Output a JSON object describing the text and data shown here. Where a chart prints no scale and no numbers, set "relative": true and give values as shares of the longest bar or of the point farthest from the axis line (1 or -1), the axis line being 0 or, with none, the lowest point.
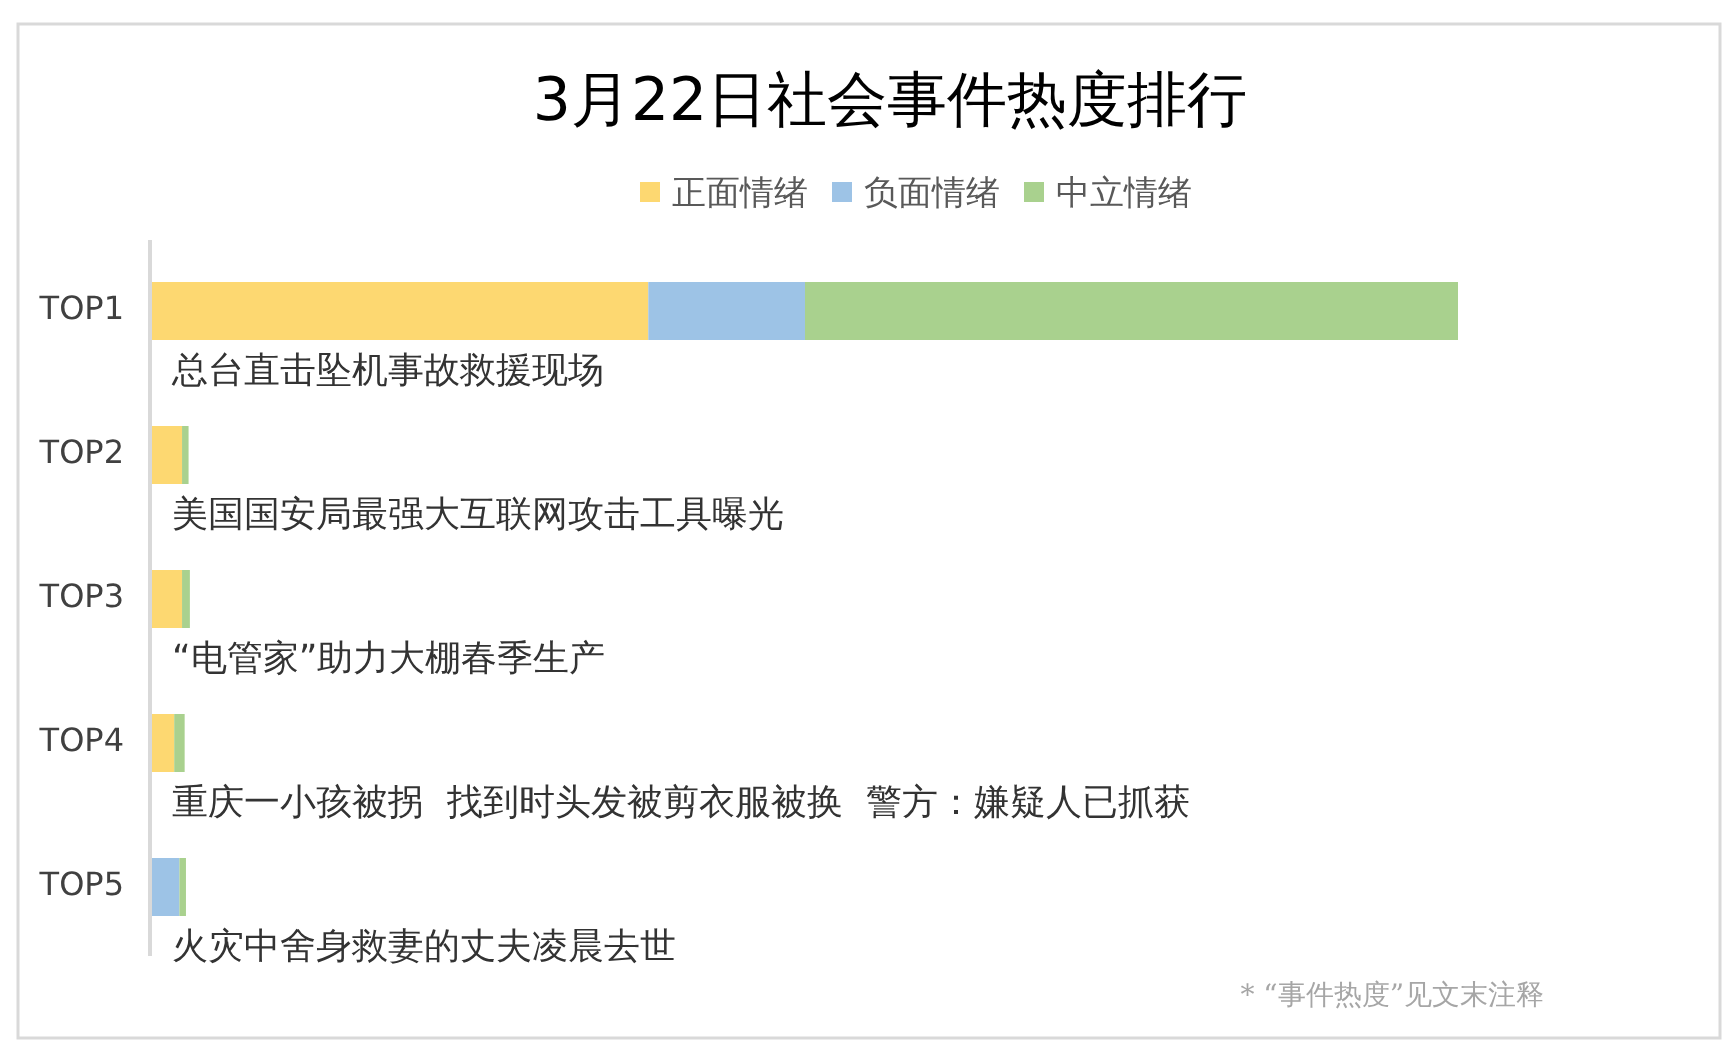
{
  "chart_data": {
    "type": "bar",
    "title": "3月22日社会事件热度排行",
    "orientation": "horizontal",
    "stacked": true,
    "relative": true,
    "legend": "top",
    "categories": [
      "TOP1",
      "TOP2",
      "TOP3",
      "TOP4",
      "TOP5"
    ],
    "series": [
      {
        "name": "正面情绪",
        "color": "#fdd871",
        "values": [
          0.38,
          0.023,
          0.023,
          0.017,
          0
        ]
      },
      {
        "name": "负面情绪",
        "color": "#9dc3e6",
        "values": [
          0.12,
          0,
          0,
          0,
          0.021
        ]
      },
      {
        "name": "中立情绪",
        "color": "#a9d18e",
        "values": [
          0.5,
          0.005,
          0.006,
          0.008,
          0.005
        ]
      }
    ],
    "annotations": [
      "总台直击坠机事故救援现场",
      "美国国安局最强大互联网攻击工具曝光",
      "“电管家”助力大棚春季生产",
      "重庆一小孩被拐  找到时头发被剪衣服被换  警方：嫌疑人已抓获",
      "火灾中舍身救妻的丈夫凌晨去世",
      "* “事件热度”见文末注释"
    ]
  }
}
